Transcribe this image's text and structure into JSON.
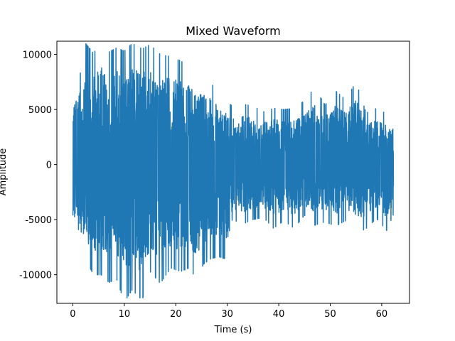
{
  "chart_data": {
    "type": "line",
    "title": "Mixed Waveform",
    "xlabel": "Time (s)",
    "ylabel": "Amplitude",
    "xlim": [
      -3.1,
      65.4
    ],
    "ylim": [
      -12600,
      11200
    ],
    "x_ticks": [
      0,
      10,
      20,
      30,
      40,
      50,
      60
    ],
    "y_ticks": [
      -10000,
      -5000,
      0,
      5000,
      10000
    ],
    "grid": false,
    "legend": "none",
    "line_color": "#1f77b4",
    "series": [
      {
        "x_range": [
          0,
          62.3
        ],
        "segments": [
          {
            "x_start": 0,
            "x_end": 31,
            "envelope": [
              {
                "x": 0,
                "max": 5900,
                "min": -7400
              },
              {
                "x": 0.5,
                "max": 8000,
                "min": -7000
              },
              {
                "x": 2,
                "max": 8500,
                "min": -8000
              },
              {
                "x": 2.5,
                "max": 11000,
                "min": -8600
              },
              {
                "x": 4,
                "max": 10100,
                "min": -10000
              },
              {
                "x": 5.5,
                "max": 11100,
                "min": -10000
              },
              {
                "x": 7,
                "max": 10200,
                "min": -10700
              },
              {
                "x": 8.5,
                "max": 10600,
                "min": -10400
              },
              {
                "x": 10,
                "max": 10300,
                "min": -12500
              },
              {
                "x": 11.5,
                "max": 11000,
                "min": -11400
              },
              {
                "x": 13.5,
                "max": 10500,
                "min": -12300
              },
              {
                "x": 15,
                "max": 10900,
                "min": -9700
              },
              {
                "x": 17,
                "max": 10000,
                "min": -10800
              },
              {
                "x": 19,
                "max": 9800,
                "min": -9400
              },
              {
                "x": 21,
                "max": 9400,
                "min": -9700
              },
              {
                "x": 22.5,
                "max": 9000,
                "min": -9400
              },
              {
                "x": 24,
                "max": 8300,
                "min": -10300
              },
              {
                "x": 25.5,
                "max": 8100,
                "min": -9000
              },
              {
                "x": 27,
                "max": 7300,
                "min": -8500
              },
              {
                "x": 28.5,
                "max": 6500,
                "min": -8400
              },
              {
                "x": 30,
                "max": 5700,
                "min": -8600
              },
              {
                "x": 31,
                "max": 5300,
                "min": -6800
              }
            ]
          },
          {
            "x_start": 31,
            "x_end": 62.3,
            "envelope": [
              {
                "x": 31,
                "max": 4000,
                "min": -5000
              },
              {
                "x": 33,
                "max": 5500,
                "min": -5400
              },
              {
                "x": 35,
                "max": 5300,
                "min": -5000
              },
              {
                "x": 37,
                "max": 4800,
                "min": -4800
              },
              {
                "x": 39,
                "max": 5100,
                "min": -5800
              },
              {
                "x": 41,
                "max": 5000,
                "min": -5100
              },
              {
                "x": 43,
                "max": 5100,
                "min": -5800
              },
              {
                "x": 45,
                "max": 5800,
                "min": -4600
              },
              {
                "x": 47,
                "max": 7000,
                "min": -5500
              },
              {
                "x": 49,
                "max": 5400,
                "min": -5200
              },
              {
                "x": 51,
                "max": 6700,
                "min": -5600
              },
              {
                "x": 53,
                "max": 5900,
                "min": -5100
              },
              {
                "x": 55,
                "max": 7500,
                "min": -6300
              },
              {
                "x": 57,
                "max": 4700,
                "min": -5800
              },
              {
                "x": 59,
                "max": 5100,
                "min": -4900
              },
              {
                "x": 61,
                "max": 4600,
                "min": -6000
              },
              {
                "x": 62.3,
                "max": 4000,
                "min": -4500
              }
            ]
          }
        ]
      }
    ]
  }
}
